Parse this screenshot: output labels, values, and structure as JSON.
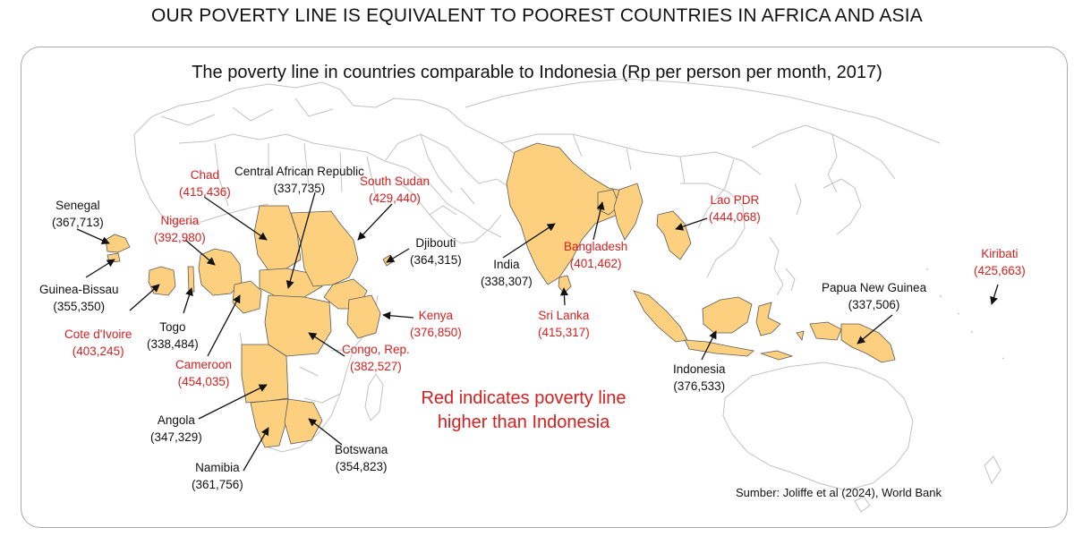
{
  "title": "OUR POVERTY LINE IS EQUIVALENT TO POOREST COUNTRIES IN AFRICA AND ASIA",
  "subtitle": "The poverty line in countries comparable to Indonesia (Rp per person per month, 2017)",
  "note": "Red indicates poverty line higher than Indonesia",
  "source": "Sumber: Joliffe et al (2024), World Bank",
  "colors": {
    "highlight_fill": "#fcd07f",
    "highlight_stroke": "#5a5a5a",
    "base_stroke": "#c2c2c2",
    "red_text": "#d42020",
    "black_text": "#111111"
  },
  "countries": [
    {
      "id": "senegal",
      "name": "Senegal",
      "value": "(367,713)",
      "red": false
    },
    {
      "id": "guinea-bissau",
      "name": "Guinea-Bissau",
      "value": "(355,350)",
      "red": false
    },
    {
      "id": "cote-divoire",
      "name": "Cote d'Ivoire",
      "value": "(403,245)",
      "red": true
    },
    {
      "id": "togo",
      "name": "Togo",
      "value": "(338,484)",
      "red": false
    },
    {
      "id": "nigeria",
      "name": "Nigeria",
      "value": "(392,980)",
      "red": true
    },
    {
      "id": "chad",
      "name": "Chad",
      "value": "(415,436)",
      "red": true
    },
    {
      "id": "car",
      "name": "Central African Republic",
      "value": "(337,735)",
      "red": false
    },
    {
      "id": "south-sudan",
      "name": "South Sudan",
      "value": "(429,440)",
      "red": true
    },
    {
      "id": "djibouti",
      "name": "Djibouti",
      "value": "(364,315)",
      "red": false
    },
    {
      "id": "kenya",
      "name": "Kenya",
      "value": "(376,850)",
      "red": true
    },
    {
      "id": "congo",
      "name": "Congo, Rep.",
      "value": "(382,527)",
      "red": true
    },
    {
      "id": "cameroon",
      "name": "Cameroon",
      "value": "(454,035)",
      "red": true
    },
    {
      "id": "angola",
      "name": "Angola",
      "value": "(347,329)",
      "red": false
    },
    {
      "id": "namibia",
      "name": "Namibia",
      "value": "(361,756)",
      "red": false
    },
    {
      "id": "botswana",
      "name": "Botswana",
      "value": "(354,823)",
      "red": false
    },
    {
      "id": "india",
      "name": "India",
      "value": "(338,307)",
      "red": false
    },
    {
      "id": "bangladesh",
      "name": "Bangladesh",
      "value": "(401,462)",
      "red": true
    },
    {
      "id": "sri-lanka",
      "name": "Sri Lanka",
      "value": "(415,317)",
      "red": true
    },
    {
      "id": "lao",
      "name": "Lao PDR",
      "value": "(444,068)",
      "red": true
    },
    {
      "id": "indonesia",
      "name": "Indonesia",
      "value": "(376,533)",
      "red": false
    },
    {
      "id": "png",
      "name": "Papua New Guinea",
      "value": "(337,506)",
      "red": false
    },
    {
      "id": "kiribati",
      "name": "Kiribati",
      "value": "(425,663)",
      "red": true
    }
  ]
}
